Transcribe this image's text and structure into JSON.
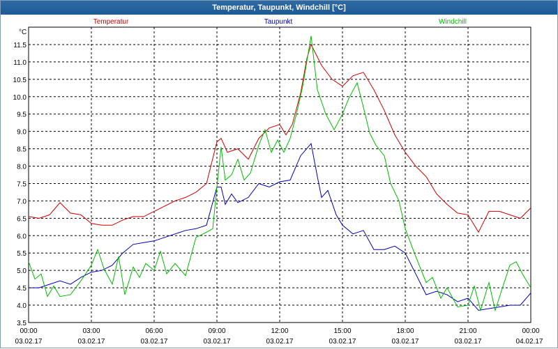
{
  "window": {
    "title": "Temperatur, Taupunkt, Windchill [°C]"
  },
  "colors": {
    "temperatur": "#cc0000",
    "taupunkt": "#0000bb",
    "windchill": "#00bb00",
    "grid": "#000000"
  },
  "chart_data": {
    "type": "line",
    "title": "Temperatur, Taupunkt, Windchill [°C]",
    "ylabel": "°C",
    "xlabel": "",
    "ylim": [
      3.5,
      12.0
    ],
    "xlim": [
      0,
      24
    ],
    "grid": true,
    "y_ticks": [
      "3.5",
      "4.0",
      "4.5",
      "5.0",
      "5.5",
      "6.0",
      "6.5",
      "7.0",
      "7.5",
      "8.0",
      "8.5",
      "9.0",
      "9.5",
      "10.0",
      "10.5",
      "11.0",
      "11.5"
    ],
    "y_tick_values": [
      3.5,
      4.0,
      4.5,
      5.0,
      5.5,
      6.0,
      6.5,
      7.0,
      7.5,
      8.0,
      8.5,
      9.0,
      9.5,
      10.0,
      10.5,
      11.0,
      11.5
    ],
    "x_tick_times": [
      "00:00",
      "03:00",
      "06:00",
      "09:00",
      "12:00",
      "15:00",
      "18:00",
      "21:00",
      "00:00"
    ],
    "x_tick_dates": [
      "03.02.17",
      "03.02.17",
      "03.02.17",
      "03.02.17",
      "03.02.17",
      "03.02.17",
      "03.02.17",
      "03.02.17",
      "04.02.17"
    ],
    "x_tick_hours": [
      0,
      3,
      6,
      9,
      12,
      15,
      18,
      21,
      24
    ],
    "series": [
      {
        "name": "Temperatur",
        "color": "#cc0000",
        "points": [
          [
            0,
            6.55
          ],
          [
            0.5,
            6.5
          ],
          [
            1,
            6.6
          ],
          [
            1.5,
            6.95
          ],
          [
            2,
            6.65
          ],
          [
            2.5,
            6.6
          ],
          [
            3,
            6.35
          ],
          [
            3.5,
            6.3
          ],
          [
            4,
            6.3
          ],
          [
            4.5,
            6.45
          ],
          [
            5,
            6.55
          ],
          [
            5.5,
            6.55
          ],
          [
            6,
            6.7
          ],
          [
            6.5,
            6.85
          ],
          [
            7,
            7.0
          ],
          [
            7.5,
            7.1
          ],
          [
            8,
            7.25
          ],
          [
            8.5,
            7.5
          ],
          [
            9,
            8.7
          ],
          [
            9.2,
            8.8
          ],
          [
            9.5,
            8.4
          ],
          [
            10,
            8.5
          ],
          [
            10.5,
            8.2
          ],
          [
            11,
            8.8
          ],
          [
            11.5,
            9.1
          ],
          [
            12,
            9.2
          ],
          [
            12.3,
            8.9
          ],
          [
            12.6,
            9.2
          ],
          [
            13,
            10.1
          ],
          [
            13.3,
            11.1
          ],
          [
            13.5,
            11.5
          ],
          [
            14,
            10.9
          ],
          [
            14.5,
            10.5
          ],
          [
            15,
            10.3
          ],
          [
            15.5,
            10.6
          ],
          [
            16,
            10.7
          ],
          [
            16.5,
            10.2
          ],
          [
            17,
            9.6
          ],
          [
            17.5,
            8.9
          ],
          [
            18,
            8.4
          ],
          [
            18.5,
            8.0
          ],
          [
            19,
            7.7
          ],
          [
            19.5,
            7.2
          ],
          [
            20,
            6.9
          ],
          [
            20.5,
            6.65
          ],
          [
            21,
            6.6
          ],
          [
            21.5,
            6.1
          ],
          [
            22,
            6.7
          ],
          [
            22.5,
            6.7
          ],
          [
            23,
            6.6
          ],
          [
            23.5,
            6.5
          ],
          [
            24,
            6.8
          ]
        ]
      },
      {
        "name": "Taupunkt",
        "color": "#0000bb",
        "points": [
          [
            0,
            4.5
          ],
          [
            0.5,
            4.5
          ],
          [
            1,
            4.6
          ],
          [
            1.5,
            4.7
          ],
          [
            2,
            4.6
          ],
          [
            2.5,
            4.8
          ],
          [
            3,
            4.95
          ],
          [
            3.5,
            5.0
          ],
          [
            4,
            5.15
          ],
          [
            4.5,
            5.5
          ],
          [
            5,
            5.75
          ],
          [
            5.5,
            5.8
          ],
          [
            6,
            5.85
          ],
          [
            6.5,
            5.95
          ],
          [
            7,
            6.05
          ],
          [
            7.5,
            6.15
          ],
          [
            8,
            6.2
          ],
          [
            8.5,
            6.3
          ],
          [
            9,
            7.4
          ],
          [
            9.2,
            7.4
          ],
          [
            9.4,
            6.9
          ],
          [
            9.7,
            7.2
          ],
          [
            10,
            6.95
          ],
          [
            10.5,
            7.1
          ],
          [
            11,
            7.5
          ],
          [
            11.5,
            7.4
          ],
          [
            12,
            7.55
          ],
          [
            12.5,
            7.6
          ],
          [
            13,
            8.3
          ],
          [
            13.5,
            8.65
          ],
          [
            13.8,
            7.7
          ],
          [
            14,
            7.1
          ],
          [
            14.3,
            7.3
          ],
          [
            14.7,
            6.6
          ],
          [
            15,
            6.3
          ],
          [
            15.5,
            6.05
          ],
          [
            16,
            6.15
          ],
          [
            16.5,
            5.6
          ],
          [
            17,
            5.6
          ],
          [
            17.5,
            5.7
          ],
          [
            18,
            5.5
          ],
          [
            18.5,
            4.9
          ],
          [
            19,
            4.3
          ],
          [
            19.5,
            4.4
          ],
          [
            20,
            4.3
          ],
          [
            20.5,
            4.1
          ],
          [
            21,
            4.2
          ],
          [
            21.5,
            3.85
          ],
          [
            22,
            3.9
          ],
          [
            22.5,
            3.95
          ],
          [
            23,
            4.0
          ],
          [
            23.5,
            4.0
          ],
          [
            24,
            4.35
          ]
        ]
      },
      {
        "name": "Windchill",
        "color": "#00bb00",
        "points": [
          [
            0,
            5.25
          ],
          [
            0.3,
            4.75
          ],
          [
            0.6,
            4.9
          ],
          [
            0.9,
            4.25
          ],
          [
            1.2,
            4.55
          ],
          [
            1.5,
            4.25
          ],
          [
            2,
            4.3
          ],
          [
            2.5,
            4.7
          ],
          [
            3,
            5.15
          ],
          [
            3.3,
            5.6
          ],
          [
            3.6,
            5.05
          ],
          [
            4,
            4.6
          ],
          [
            4.3,
            5.4
          ],
          [
            4.6,
            4.3
          ],
          [
            5,
            5.1
          ],
          [
            5.3,
            4.8
          ],
          [
            5.6,
            5.2
          ],
          [
            6,
            5.0
          ],
          [
            6.3,
            5.55
          ],
          [
            6.6,
            4.9
          ],
          [
            7,
            5.2
          ],
          [
            7.5,
            4.85
          ],
          [
            8,
            5.95
          ],
          [
            8.5,
            6.1
          ],
          [
            8.8,
            6.2
          ],
          [
            9,
            7.4
          ],
          [
            9.2,
            8.55
          ],
          [
            9.4,
            7.6
          ],
          [
            9.7,
            7.75
          ],
          [
            10,
            8.2
          ],
          [
            10.3,
            7.6
          ],
          [
            10.6,
            7.8
          ],
          [
            11,
            8.6
          ],
          [
            11.3,
            9.05
          ],
          [
            11.6,
            8.4
          ],
          [
            11.9,
            8.75
          ],
          [
            12.2,
            8.4
          ],
          [
            12.5,
            8.8
          ],
          [
            12.8,
            9.5
          ],
          [
            13.1,
            10.3
          ],
          [
            13.5,
            11.75
          ],
          [
            13.8,
            10.2
          ],
          [
            14.2,
            9.5
          ],
          [
            14.6,
            9.05
          ],
          [
            15,
            9.5
          ],
          [
            15.3,
            9.95
          ],
          [
            15.7,
            10.4
          ],
          [
            16,
            9.7
          ],
          [
            16.3,
            8.95
          ],
          [
            16.6,
            8.6
          ],
          [
            17,
            8.3
          ],
          [
            17.3,
            7.5
          ],
          [
            17.7,
            7.0
          ],
          [
            18,
            6.2
          ],
          [
            18.5,
            5.4
          ],
          [
            19,
            4.65
          ],
          [
            19.3,
            4.8
          ],
          [
            19.7,
            4.2
          ],
          [
            20,
            4.5
          ],
          [
            20.5,
            3.95
          ],
          [
            21,
            4.0
          ],
          [
            21.3,
            4.55
          ],
          [
            21.6,
            3.85
          ],
          [
            22,
            4.65
          ],
          [
            22.3,
            3.85
          ],
          [
            22.7,
            4.6
          ],
          [
            23,
            5.15
          ],
          [
            23.3,
            5.25
          ],
          [
            23.6,
            4.9
          ],
          [
            24,
            4.5
          ]
        ]
      }
    ]
  }
}
